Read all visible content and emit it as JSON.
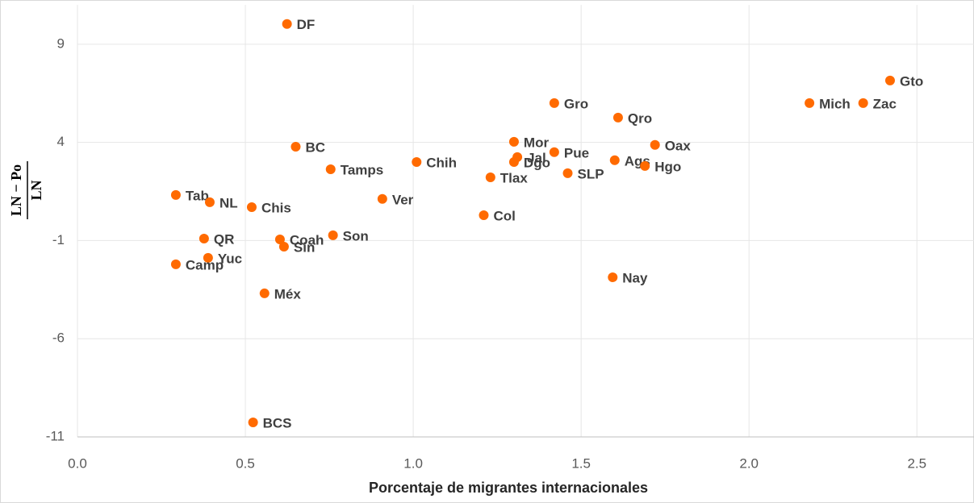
{
  "chart_data": {
    "type": "scatter",
    "xlabel": "Porcentaje de migrantes internacionales",
    "ylabel": {
      "numerator": "LN − Po",
      "denominator": "LN"
    },
    "color": "#ff6a00",
    "grid": true,
    "xlim": [
      0,
      2.67
    ],
    "ylim": [
      -11,
      11
    ],
    "xticks": [
      {
        "value": 0,
        "label": "0.0"
      },
      {
        "value": 0.5,
        "label": "0.5"
      },
      {
        "value": 1,
        "label": "1.0"
      },
      {
        "value": 1.5,
        "label": "1.5"
      },
      {
        "value": 2,
        "label": "2.0"
      },
      {
        "value": 2.5,
        "label": "2.5"
      }
    ],
    "yticks": [
      9,
      4,
      -1,
      -6,
      -11
    ],
    "labels": [
      "DF",
      "Gto",
      "Mich",
      "Zac",
      "Gro",
      "Qro",
      "Mor",
      "Oax",
      "BC",
      "Pue",
      "Jal",
      "Dgo",
      "Chih",
      "Ags",
      "Hgo",
      "Tamps",
      "SLP",
      "Tlax",
      "Tab",
      "Ver",
      "NL",
      "Chis",
      "Col",
      "Son",
      "QR",
      "Coah",
      "Sin",
      "Yuc",
      "Camp",
      "Nay",
      "Méx",
      "BCS"
    ],
    "x": [
      0.624,
      2.42,
      2.18,
      2.34,
      1.42,
      1.61,
      1.3,
      1.72,
      0.65,
      1.42,
      1.31,
      1.3,
      1.01,
      1.6,
      1.69,
      0.754,
      1.46,
      1.23,
      0.293,
      0.908,
      0.394,
      0.519,
      1.21,
      0.761,
      0.377,
      0.603,
      0.615,
      0.389,
      0.293,
      1.594,
      0.557,
      0.523
    ],
    "values": [
      10.03,
      7.15,
      6.0,
      6.0,
      6.0,
      5.26,
      4.03,
      3.87,
      3.78,
      3.5,
      3.25,
      3.0,
      3.0,
      3.09,
      2.8,
      2.63,
      2.43,
      2.22,
      1.32,
      1.12,
      0.95,
      0.7,
      0.29,
      -0.73,
      -0.9,
      -0.94,
      -1.31,
      -1.88,
      -2.21,
      -2.87,
      -3.69,
      -10.26
    ]
  }
}
